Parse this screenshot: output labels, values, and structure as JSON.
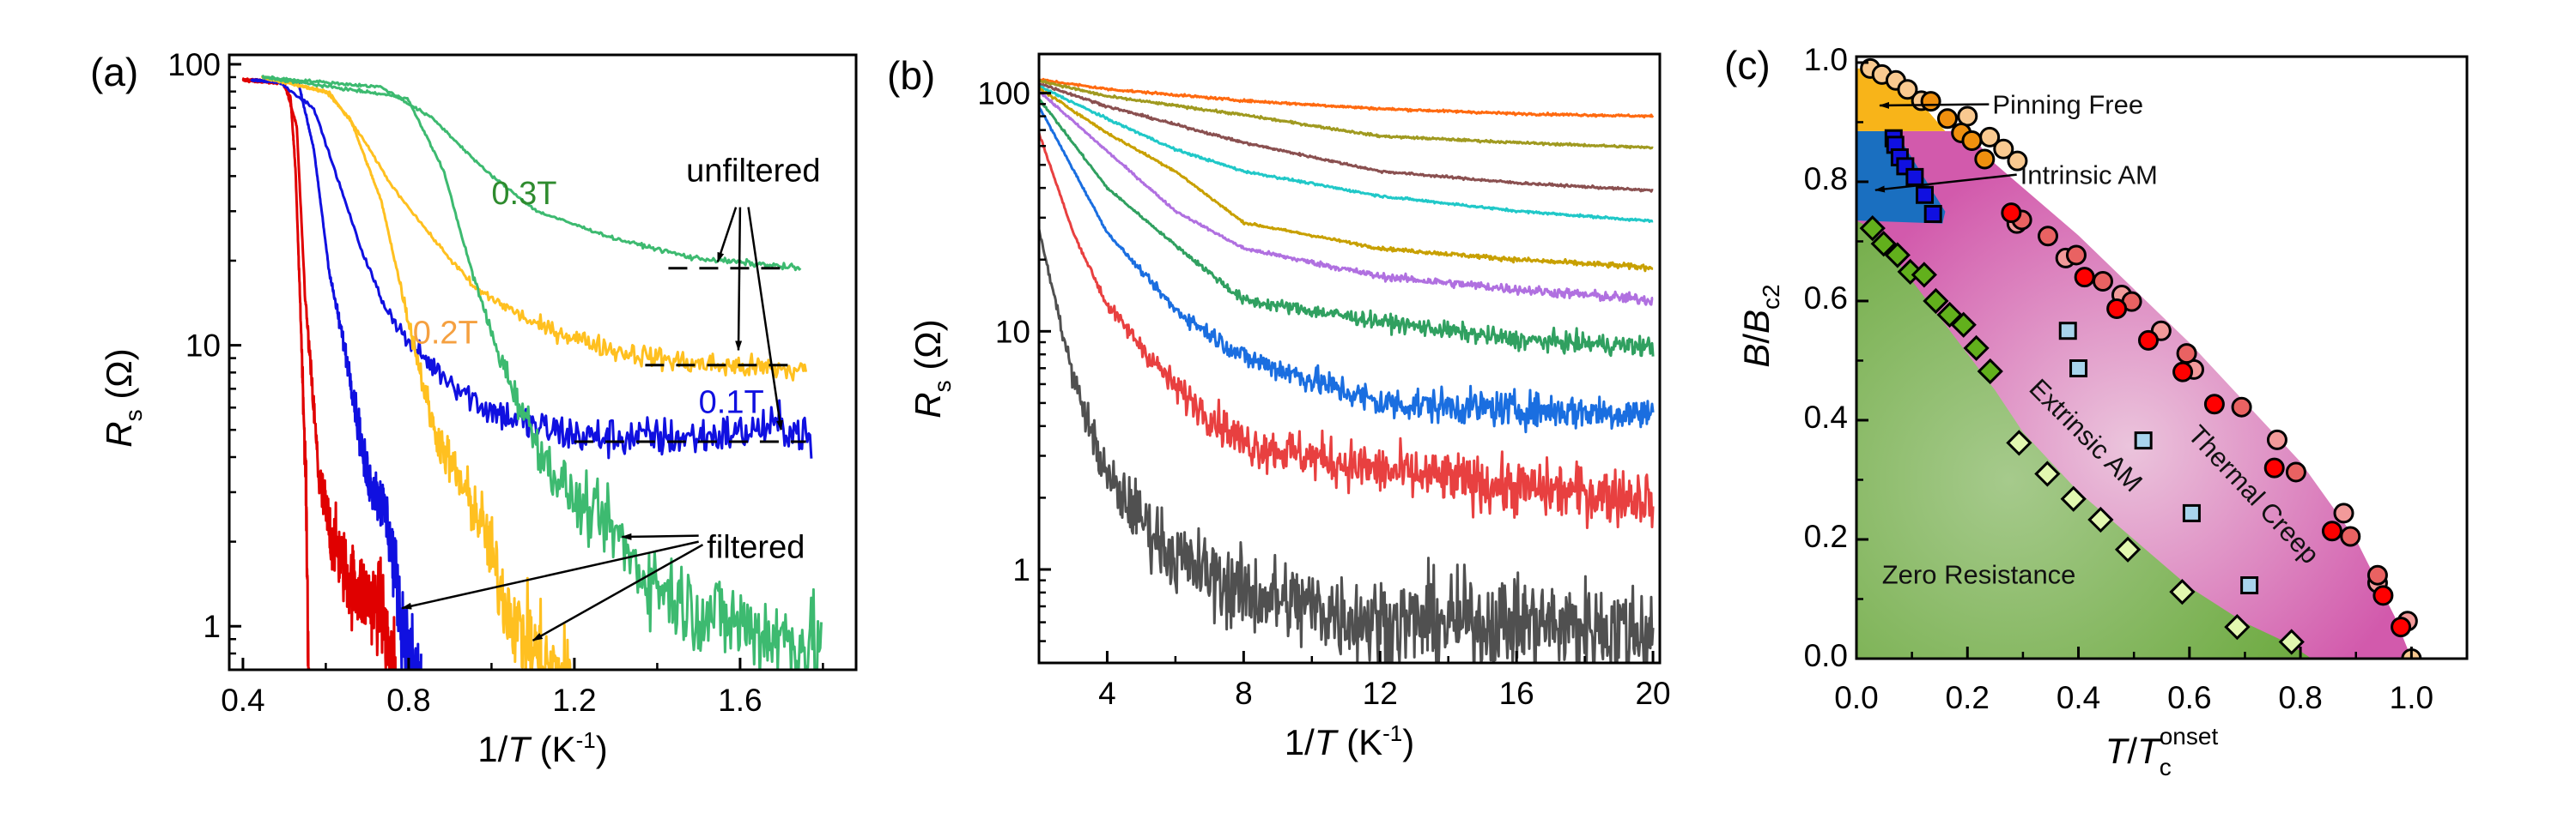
{
  "panels": {
    "a": {
      "label": "(a)"
    },
    "b": {
      "label": "(b)"
    },
    "c": {
      "label": "(c)"
    }
  },
  "chart_data": [
    {
      "panel": "(a)",
      "type": "line",
      "xlabel": {
        "pre": "1/",
        "italic": "T",
        "post": " (K",
        "sup": "-1",
        "close": ")"
      },
      "ylabel": {
        "italic": "R",
        "sub": "s",
        "post": " (Ω)"
      },
      "xlim": [
        0.367,
        1.88
      ],
      "ylim": [
        0.7,
        108
      ],
      "yscale": "log",
      "xticks": [
        0.4,
        0.8,
        1.2,
        1.6
      ],
      "xtick_labels": [
        "0.4",
        "0.8",
        "1.2",
        "1.6"
      ],
      "yticks": [
        1,
        10,
        100
      ],
      "ytick_labels": [
        "1",
        "10",
        "100"
      ],
      "grid": false,
      "series": [
        {
          "color": "#e00000",
          "kind": "unfiltered",
          "x": [
            0.4,
            0.496,
            0.515,
            0.527,
            0.54,
            0.552,
            0.559
          ],
          "y": [
            88,
            86,
            76,
            42,
            11.8,
            3.3,
            0.6
          ]
        },
        {
          "color": "#e00000",
          "kind": "filtered",
          "x": [
            0.4,
            0.5,
            0.53,
            0.55,
            0.584,
            0.609,
            0.659,
            0.734,
            0.77
          ],
          "y": [
            88,
            86,
            60,
            15,
            3.3,
            2.2,
            1.43,
            1.16,
            0.6
          ]
        },
        {
          "color": "#1010e0",
          "kind": "unfiltered",
          "x": [
            0.42,
            0.484,
            0.571,
            0.634,
            0.684,
            0.734,
            0.796,
            0.859,
            0.984,
            1.109,
            1.234,
            1.484,
            1.609,
            1.696,
            1.771,
            1.772
          ],
          "y": [
            88,
            87,
            70,
            37,
            22.3,
            14.6,
            10.4,
            8.4,
            6.0,
            5.1,
            4.7,
            4.7,
            4.9,
            5.2,
            4.7,
            3.9
          ]
        },
        {
          "color": "#1010e0",
          "kind": "filtered",
          "x": [
            0.42,
            0.534,
            0.571,
            0.609,
            0.659,
            0.696,
            0.746,
            0.771,
            0.796,
            0.83
          ],
          "y": [
            88,
            86,
            50,
            18,
            7.8,
            3.6,
            2.5,
            1.43,
            0.8,
            0.6
          ]
        },
        {
          "color": "#ffc020",
          "kind": "unfiltered",
          "x": [
            0.446,
            0.609,
            0.684,
            0.759,
            0.859,
            0.959,
            1.109,
            1.296,
            1.484,
            1.759
          ],
          "y": [
            90,
            79,
            56,
            37,
            24,
            16,
            11.8,
            9.6,
            8.6,
            8.1
          ]
        },
        {
          "color": "#ffc020",
          "kind": "filtered",
          "x": [
            0.446,
            0.6,
            0.659,
            0.734,
            0.796,
            0.859,
            0.921,
            0.984,
            1.021,
            1.071,
            1.134,
            1.2
          ],
          "y": [
            90,
            80,
            64,
            32.6,
            12.9,
            5.1,
            3.3,
            2.2,
            1.37,
            0.94,
            0.72,
            0.6
          ]
        },
        {
          "color": "#3dba70",
          "kind": "unfiltered",
          "x": [
            0.446,
            0.734,
            0.859,
            0.984,
            1.109,
            1.296,
            1.484,
            1.746
          ],
          "y": [
            90,
            83,
            64,
            42,
            30,
            24,
            20.5,
            18.8
          ]
        },
        {
          "color": "#3dba70",
          "kind": "filtered",
          "x": [
            0.446,
            0.796,
            0.884,
            0.946,
            1.009,
            1.071,
            1.134,
            1.209,
            1.296,
            1.359,
            1.484,
            1.671,
            1.796
          ],
          "y": [
            90,
            76,
            42,
            19.7,
            10,
            6.0,
            3.8,
            2.7,
            2.2,
            1.56,
            1.16,
            0.94,
            0.83
          ]
        }
      ],
      "dashed_lines": [
        {
          "x": [
            1.427,
            1.721
          ],
          "y": 18.8
        },
        {
          "x": [
            1.371,
            1.727
          ],
          "y": 8.5
        },
        {
          "x": [
            1.2,
            1.759
          ],
          "y": 4.54
        }
      ],
      "annotations": [
        {
          "text": "0.3T",
          "x": 1.0,
          "y": 34.8,
          "color": "#2e8b2e"
        },
        {
          "text": "0.2T",
          "x": 0.81,
          "y": 11.1,
          "color": "#f5a040"
        },
        {
          "text": "0.1T",
          "x": 1.5,
          "y": 6.3,
          "color": "#1010e0"
        },
        {
          "text": "unfiltered",
          "x": 1.47,
          "y": 42,
          "color": "#000000"
        },
        {
          "text": "filtered",
          "x": 1.52,
          "y": 1.92,
          "color": "#000000"
        }
      ],
      "arrows": [
        {
          "from": [
            1.59,
            31
          ],
          "to": [
            1.546,
            19.8
          ]
        },
        {
          "from": [
            1.6,
            31
          ],
          "to": [
            1.596,
            9.6
          ]
        },
        {
          "from": [
            1.62,
            31
          ],
          "to": [
            1.699,
            5.0
          ]
        },
        {
          "from": [
            1.5,
            2.1
          ],
          "to": [
            1.315,
            2.08
          ]
        },
        {
          "from": [
            1.5,
            2.0
          ],
          "to": [
            0.784,
            1.16
          ]
        },
        {
          "from": [
            1.51,
            1.95
          ],
          "to": [
            1.1,
            0.89
          ]
        }
      ]
    },
    {
      "panel": "(b)",
      "type": "line",
      "xlabel": {
        "pre": "1/",
        "italic": "T",
        "post": " (K",
        "sup": "-1",
        "close": ")"
      },
      "ylabel": {
        "italic": "R",
        "sub": "s",
        "post": " (Ω)"
      },
      "xlim": [
        2.0,
        20.2
      ],
      "ylim": [
        0.405,
        146
      ],
      "yscale": "log",
      "xticks": [
        4,
        8,
        12,
        16,
        20
      ],
      "xtick_labels": [
        "4",
        "8",
        "12",
        "16",
        "20"
      ],
      "yticks": [
        1,
        10,
        100
      ],
      "ytick_labels": [
        "1",
        "10",
        "100"
      ],
      "grid": false,
      "series": [
        {
          "color": "#ff6a10",
          "x": [
            2,
            4,
            8,
            12,
            16,
            20
          ],
          "y": [
            114,
            104,
            93,
            86,
            82,
            80
          ]
        },
        {
          "color": "#a09a20",
          "x": [
            2,
            4,
            8,
            12,
            16,
            20
          ],
          "y": [
            113,
            97,
            81,
            66,
            62,
            59
          ]
        },
        {
          "color": "#8a5050",
          "x": [
            2,
            4,
            8,
            12,
            16,
            20
          ],
          "y": [
            110,
            88,
            62,
            47,
            42,
            39
          ]
        },
        {
          "color": "#20c8c8",
          "x": [
            2,
            4,
            6,
            8,
            12,
            16,
            20
          ],
          "y": [
            107,
            78,
            58,
            47,
            37,
            32,
            29
          ]
        },
        {
          "color": "#c8a000",
          "x": [
            2,
            4,
            6,
            8,
            12,
            16,
            20
          ],
          "y": [
            105,
            68,
            47,
            28.6,
            22.3,
            20,
            18.5
          ]
        },
        {
          "color": "#b070e0",
          "x": [
            2,
            4,
            6,
            8,
            12,
            16,
            20
          ],
          "y": [
            102,
            57,
            32,
            22.3,
            17,
            15,
            13.5
          ]
        },
        {
          "color": "#30a060",
          "x": [
            2,
            4,
            6,
            8,
            12,
            16,
            20
          ],
          "y": [
            95,
            40,
            23,
            13.5,
            11,
            9.2,
            8.6
          ]
        },
        {
          "color": "#1a6ee0",
          "x": [
            2,
            4,
            6,
            8,
            12,
            16,
            20
          ],
          "y": [
            88,
            26,
            12.3,
            7.8,
            5.0,
            4.7,
            4.5
          ]
        },
        {
          "color": "#e84040",
          "x": [
            2,
            3,
            4,
            6,
            8,
            12,
            16,
            20
          ],
          "y": [
            68,
            26,
            12.9,
            5.8,
            3.4,
            2.6,
            2.2,
            2.0
          ]
        },
        {
          "color": "#505050",
          "x": [
            2,
            3,
            4,
            6,
            8,
            12,
            16,
            20
          ],
          "y": [
            26.6,
            6.4,
            2.4,
            1.12,
            0.8,
            0.6,
            0.6,
            0.55
          ]
        }
      ]
    },
    {
      "panel": "(c)",
      "type": "scatter",
      "xlabel": {
        "italic": "T",
        "mid": "/",
        "italic2": "T",
        "sub": "c",
        "sup": "onset"
      },
      "ylabel": {
        "italic": "B",
        "mid": "/",
        "italic2": "B",
        "sub": "c2"
      },
      "xlim": [
        0,
        1.1
      ],
      "ylim": [
        0,
        1.01
      ],
      "xticks": [
        0.0,
        0.2,
        0.4,
        0.6,
        0.8,
        1.0
      ],
      "xtick_labels": [
        "0.0",
        "0.2",
        "0.4",
        "0.6",
        "0.8",
        "1.0"
      ],
      "yticks": [
        0.0,
        0.2,
        0.4,
        0.6,
        0.8,
        1.0
      ],
      "ytick_labels": [
        "0.0",
        "0.2",
        "0.4",
        "0.6",
        "0.8",
        "1.0"
      ],
      "grid": false,
      "regions": [
        {
          "text": "Thermal Creep",
          "color": "#d25aac",
          "light": "#ebc4dc",
          "label_at": [
            0.704,
            0.265
          ],
          "rotate": 47,
          "polygon": [
            [
              0.07,
              0.885
            ],
            [
              0.2,
              0.885
            ],
            [
              0.25,
              0.83
            ],
            [
              0.4,
              0.71
            ],
            [
              0.6,
              0.53
            ],
            [
              0.8,
              0.33
            ],
            [
              0.9,
              0.2
            ],
            [
              0.97,
              0.07
            ],
            [
              1.0,
              0.0
            ],
            [
              0.8,
              0.0
            ],
            [
              0,
              0
            ],
            [
              0,
              0.735
            ]
          ]
        },
        {
          "text": "Extrinsic AM",
          "color": "#d78cc0",
          "label_at": [
            0.402,
            0.364
          ],
          "rotate": 45,
          "polygon": []
        },
        {
          "text": "Zero Resistance",
          "color": "#6aa83c",
          "light": "#a6ca8c",
          "label_at": [
            0.046,
            0.142
          ],
          "rotate": 0,
          "polygon": [
            [
              0,
              0.735
            ],
            [
              0.03,
              0.72
            ],
            [
              0.25,
              0.45
            ],
            [
              0.3,
              0.38
            ],
            [
              0.4,
              0.28
            ],
            [
              0.5,
              0.2
            ],
            [
              0.6,
              0.12
            ],
            [
              0.7,
              0.06
            ],
            [
              0.78,
              0.025
            ],
            [
              0.82,
              0.0
            ],
            [
              0,
              0
            ]
          ]
        },
        {
          "text": "Intrinsic AM",
          "color": "#1a6fc0",
          "label_at": [
            0.295,
            0.812
          ],
          "rotate": 0,
          "arrow_to": [
            0.034,
            0.786
          ],
          "polygon": [
            [
              0,
              0.885
            ],
            [
              0.07,
              0.885
            ],
            [
              0.16,
              0.75
            ],
            [
              0.155,
              0.73
            ],
            [
              0,
              0.735
            ]
          ]
        },
        {
          "text": "Pinning Free",
          "color": "#f8b419",
          "label_at": [
            0.245,
            0.93
          ],
          "rotate": 0,
          "arrow_to": [
            0.042,
            0.928
          ],
          "polygon": [
            [
              0,
              0.99
            ],
            [
              0.025,
              0.99
            ],
            [
              0.1,
              0.95
            ],
            [
              0.16,
              0.885
            ],
            [
              0,
              0.885
            ]
          ]
        }
      ],
      "series": [
        {
          "marker": "circle",
          "color": "#f9c990",
          "x": [
            0.2,
            0.24,
            0.265,
            0.29,
            1.0
          ],
          "y": [
            0.91,
            0.875,
            0.855,
            0.835,
            0.0
          ]
        },
        {
          "marker": "circle",
          "color": "#f9c990",
          "x": [
            0.025,
            0.046,
            0.071,
            0.092,
            0.117
          ],
          "y": [
            0.99,
            0.98,
            0.97,
            0.955,
            0.936
          ]
        },
        {
          "marker": "circle",
          "color": "#f0900e",
          "x": [
            0.134,
            0.164,
            0.189,
            0.208,
            0.231
          ],
          "y": [
            0.935,
            0.906,
            0.882,
            0.869,
            0.838
          ]
        },
        {
          "marker": "square",
          "color": "#1010e0",
          "x": [
            0.067,
            0.07,
            0.078,
            0.088,
            0.105,
            0.123,
            0.138
          ],
          "y": [
            0.873,
            0.862,
            0.841,
            0.826,
            0.808,
            0.778,
            0.746
          ]
        },
        {
          "marker": "diamond",
          "color": "#62b01c",
          "x": [
            0.029,
            0.049,
            0.074,
            0.097,
            0.122,
            0.143,
            0.168,
            0.193,
            0.216,
            0.241
          ],
          "y": [
            0.722,
            0.696,
            0.677,
            0.649,
            0.644,
            0.6,
            0.577,
            0.56,
            0.521,
            0.482
          ]
        },
        {
          "marker": "diamond",
          "color": "#e2f8b0",
          "x": [
            0.293,
            0.344,
            0.391,
            0.44,
            0.489,
            0.587,
            0.686,
            0.784
          ],
          "y": [
            0.362,
            0.31,
            0.268,
            0.233,
            0.183,
            0.112,
            0.053,
            0.028
          ]
        },
        {
          "marker": "square",
          "color": "#a8d4ec",
          "x": [
            0.381,
            0.4,
            0.517,
            0.604,
            0.708
          ],
          "y": [
            0.55,
            0.487,
            0.366,
            0.244,
            0.123
          ]
        },
        {
          "marker": "circle",
          "color": "#f29a9a",
          "x": [
            0.289,
            0.377,
            0.478,
            0.549,
            0.608,
            0.758,
            0.878,
            0.939,
            0.993
          ],
          "y": [
            0.73,
            0.672,
            0.61,
            0.55,
            0.485,
            0.367,
            0.244,
            0.127,
            0.063
          ]
        },
        {
          "marker": "circle",
          "color": "#e96262",
          "x": [
            0.298,
            0.345,
            0.396,
            0.444,
            0.496,
            0.595,
            0.694,
            0.792,
            0.89,
            0.939
          ],
          "y": [
            0.736,
            0.709,
            0.677,
            0.633,
            0.599,
            0.512,
            0.422,
            0.313,
            0.205,
            0.14
          ]
        },
        {
          "marker": "circle",
          "color": "#ff0000",
          "x": [
            0.279,
            0.411,
            0.469,
            0.526,
            0.588,
            0.645,
            0.753,
            0.857,
            0.949,
            0.981
          ],
          "y": [
            0.748,
            0.64,
            0.587,
            0.534,
            0.481,
            0.427,
            0.32,
            0.214,
            0.106,
            0.053
          ]
        }
      ]
    }
  ]
}
